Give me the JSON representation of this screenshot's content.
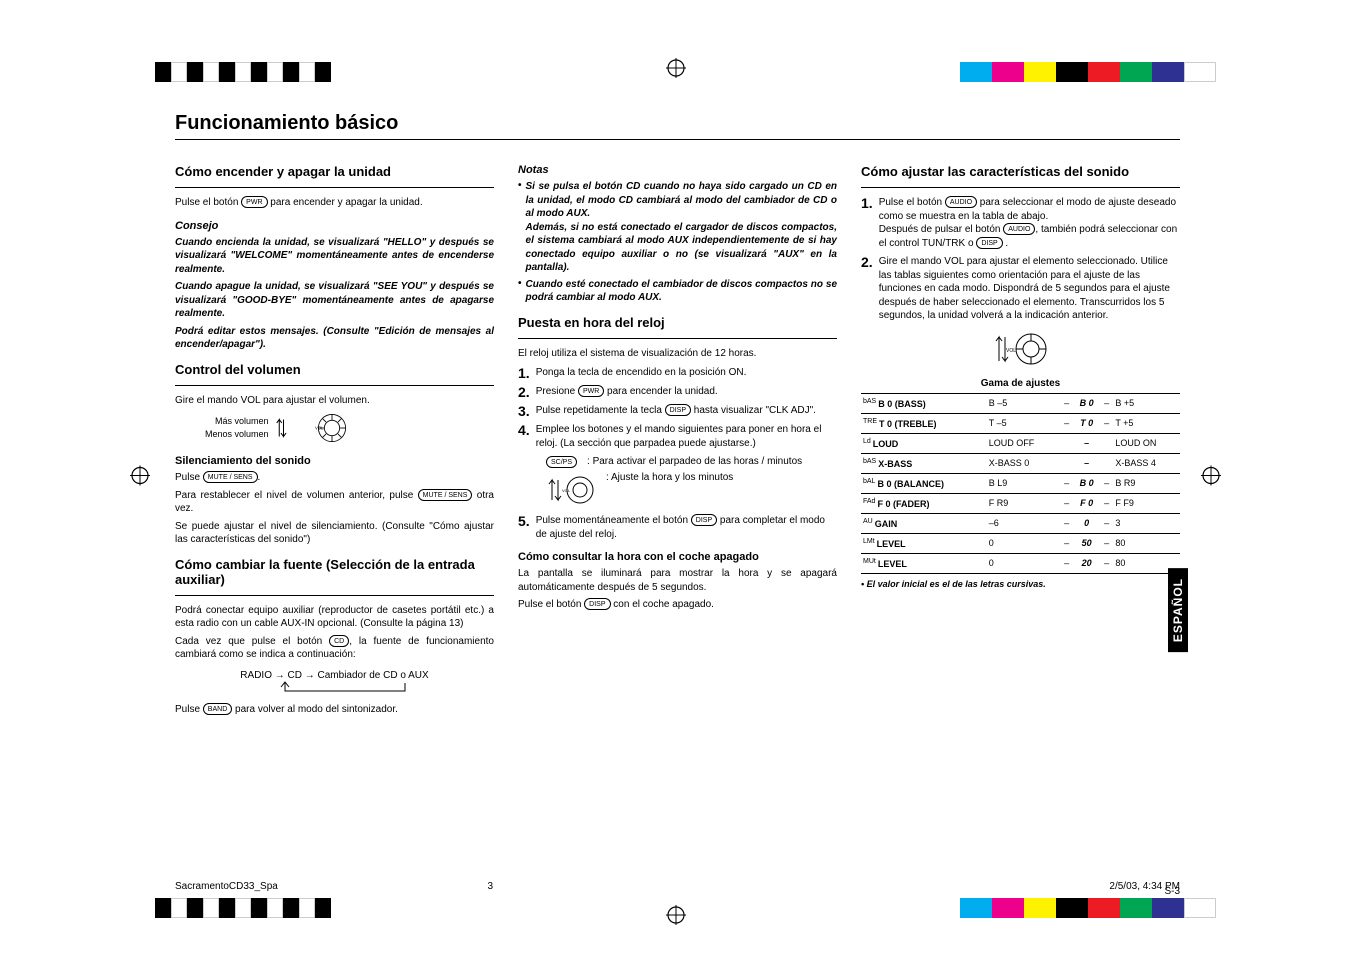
{
  "colorbar": {
    "bw": [
      "#000000",
      "#ffffff",
      "#000000",
      "#ffffff",
      "#000000",
      "#ffffff",
      "#000000",
      "#ffffff",
      "#000000",
      "#ffffff",
      "#000000"
    ],
    "swatches": [
      "#00aeef",
      "#ec008c",
      "#fff200",
      "#000000",
      "#ed1c24",
      "#00a651",
      "#2e3192",
      "#ffffff"
    ]
  },
  "main_title": "Funcionamiento básico",
  "col1": {
    "h2_1": "Cómo encender y apagar la unidad",
    "p1a": "Pulse el botón ",
    "p1_btn": "PWR",
    "p1b": " para encender y apagar la unidad.",
    "consejo_h": "Consejo",
    "consejo_1": "Cuando encienda la unidad, se visualizará \"HELLO\" y después se visualizará \"WELCOME\" momentáneamente antes de encenderse realmente.",
    "consejo_2": "Cuando apague la unidad, se visualizará \"SEE YOU\" y después se visualizará \"GOOD-BYE\" momentáneamente antes de apagarse realmente.",
    "consejo_3": "Podrá editar estos mensajes. (Consulte \"Edición de mensajes al encender/apagar\").",
    "h2_2": "Control del volumen",
    "p2": "Gire el mando VOL para ajustar el volumen.",
    "vol_more": "Más volumen",
    "vol_less": "Menos volumen",
    "vol_label": "VOL",
    "h3_sil": "Silenciamiento del sonido",
    "sil_1a": "Pulse ",
    "sil_btn": "MUTE / SENS",
    "sil_1b": ".",
    "sil_2a": "Para restablecer el nivel de volumen anterior, pulse ",
    "sil_2b": " otra vez.",
    "sil_3": "Se puede ajustar el nivel de silenciamiento. (Consulte \"Cómo ajustar las características del sonido\")",
    "h2_3": "Cómo cambiar la fuente (Selección de la entrada auxiliar)",
    "p3": "Podrá conectar equipo auxiliar (reproductor de casetes portátil etc.) a esta radio con un cable AUX-IN opcional. (Consulte la página 13)",
    "p4a": "Cada vez que pulse el botón ",
    "p4_btn": "CD",
    "p4b": ", la fuente de funcionamiento cambiará como se indica a continuación:",
    "flow": "RADIO  →  CD  →  Cambiador de CD o AUX",
    "p5a": "Pulse ",
    "p5_btn": "BAND",
    "p5b": " para volver al modo del sintonizador."
  },
  "col2": {
    "notas_h": "Notas",
    "nota1": "Si se pulsa el botón CD cuando no haya sido cargado un CD en la unidad, el modo CD cambiará al modo del cambiador de CD o al modo AUX.",
    "nota1b": "Además, si no está conectado el cargador de discos compactos, el sistema cambiará al modo AUX independientemente de si hay conectado equipo auxiliar o no (se visualizará \"AUX\" en la pantalla).",
    "nota2": "Cuando esté conectado el cambiador de discos compactos no se podrá cambiar al modo AUX.",
    "h2_clock": "Puesta en hora del reloj",
    "clock_intro": "El reloj utiliza el sistema de visualización de 12 horas.",
    "step1": "Ponga la tecla de encendido en la posición ON.",
    "step2a": "Presione ",
    "step2_btn": "PWR",
    "step2b": " para encender la unidad.",
    "step3a": "Pulse repetidamente la tecla ",
    "step3_btn": "DISP",
    "step3b": " hasta visualizar \"CLK ADJ\".",
    "step4": "Emplee los botones y el mando siguientes para poner en hora el reloj. (La sección que parpadea puede ajustarse.)",
    "step4_sub1_btn": "SC/PS",
    "step4_sub1": ": Para activar el parpadeo de las horas / minutos",
    "step4_sub2": ": Ajuste la hora y los minutos",
    "step5a": "Pulse momentáneamente el botón ",
    "step5_btn": "DISP",
    "step5b": " para completar el modo de ajuste del reloj.",
    "h3_consult": "Cómo consultar la hora con el coche apagado",
    "consult_1": "La pantalla se iluminará para mostrar la hora y se apagará automáticamente después de 5 segundos.",
    "consult_2a": "Pulse el botón ",
    "consult_2btn": "DISP",
    "consult_2b": " con el coche apagado."
  },
  "col3": {
    "h2": "Cómo ajustar las características del sonido",
    "step1a": "Pulse el botón ",
    "step1_btn": "AUDIO",
    "step1b": " para seleccionar el modo de ajuste deseado como se muestra en la tabla de abajo.",
    "step1c": "Después de pulsar el botón ",
    "step1_btn2": "AUDIO",
    "step1d": ", también podrá seleccionar con el control TUN/TRK o ",
    "step1_btn3": "DISP",
    "step1e": " .",
    "step2": "Gire el mando VOL para ajustar el elemento seleccionado. Utilice las tablas siguientes como orientación para el ajuste de las funciones en cada modo. Dispondrá de 5 segundos para el ajuste después de haber seleccionado el elemento. Transcurridos los 5 segundos, la unidad volverá a la indicación anterior.",
    "vol_label": "VOL",
    "table_caption": "Gama de ajustes",
    "rows": [
      {
        "sup": "bAS",
        "lab": "B 0 (BASS)",
        "min": "B  –5",
        "dash1": "–",
        "mid": "B   0",
        "dash2": "–",
        "max": "B  +5"
      },
      {
        "sup": "TRE",
        "lab": "T 0 (TREBLE)",
        "min": "T  –5",
        "dash1": "–",
        "mid": "T   0",
        "dash2": "–",
        "max": "T  +5"
      },
      {
        "sup": "Ld",
        "lab": "LOUD",
        "min": "LOUD OFF",
        "dash1": "",
        "mid": "–",
        "dash2": "",
        "max": "LOUD ON"
      },
      {
        "sup": "bAS",
        "lab": "X-BASS",
        "min": "X-BASS 0",
        "dash1": "",
        "mid": "–",
        "dash2": "",
        "max": "X-BASS 4"
      },
      {
        "sup": "bAL",
        "lab": "B 0 (BALANCE)",
        "min": "B  L9",
        "dash1": "–",
        "mid": "B   0",
        "dash2": "–",
        "max": "B  R9"
      },
      {
        "sup": "FAd",
        "lab": "F 0 (FADER)",
        "min": "F  R9",
        "dash1": "–",
        "mid": "F   0",
        "dash2": "–",
        "max": "F  F9"
      },
      {
        "sup": "AU",
        "lab": "GAIN",
        "min": "–6",
        "dash1": "–",
        "mid": "0",
        "dash2": "–",
        "max": "3"
      },
      {
        "sup": "LMt",
        "lab": "LEVEL",
        "min": "0",
        "dash1": "–",
        "mid": "50",
        "dash2": "–",
        "max": "80"
      },
      {
        "sup": "MUt",
        "lab": "LEVEL",
        "min": "0",
        "dash1": "–",
        "mid": "20",
        "dash2": "–",
        "max": "80"
      }
    ],
    "footnote": "• El valor inicial es el de las letras cursivas.",
    "espanol": "ESPAÑOL",
    "page_num": "S-3"
  },
  "footer": {
    "left": "SacramentoCD33_Spa",
    "mid": "3",
    "right": "2/5/03, 4:34 PM"
  }
}
